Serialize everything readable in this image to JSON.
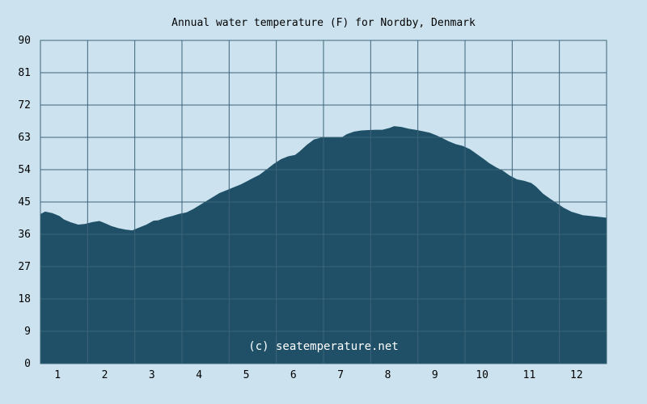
{
  "colors": {
    "background": "#cce3ef",
    "plot_background": "#cce3ef",
    "area_fill": "#1f5068",
    "grid_line": "#3d6378",
    "grid_line_inner": "#4a7a92",
    "text": "#000000",
    "watermark": "#ffffff"
  },
  "chart_data": {
    "type": "area",
    "title": "Annual water temperature (F) for Nordby, Denmark",
    "xlabel": "",
    "ylabel": "",
    "watermark": "(c) seatemperature.net",
    "ylim": [
      0,
      90
    ],
    "xlim": [
      0.5,
      12.5
    ],
    "y_ticks": [
      "0",
      "9",
      "18",
      "27",
      "36",
      "45",
      "54",
      "63",
      "72",
      "81",
      "90"
    ],
    "y_tick_values": [
      0,
      9,
      18,
      27,
      36,
      45,
      54,
      63,
      72,
      81,
      90
    ],
    "x_ticks": [
      "1",
      "2",
      "3",
      "4",
      "5",
      "6",
      "7",
      "8",
      "9",
      "10",
      "11",
      "12"
    ],
    "x_tick_values": [
      1,
      2,
      3,
      4,
      5,
      6,
      7,
      8,
      9,
      10,
      11,
      12
    ],
    "grid": true,
    "series": [
      {
        "x": [
          0.5,
          0.6,
          0.75,
          0.9,
          1.0,
          1.15,
          1.3,
          1.45,
          1.6,
          1.75,
          1.9,
          2.0,
          2.15,
          2.3,
          2.45,
          2.6,
          2.75,
          2.9,
          3.0,
          3.15,
          3.3,
          3.45,
          3.6,
          3.75,
          3.9,
          4.0,
          4.15,
          4.3,
          4.45,
          4.6,
          4.75,
          4.9,
          5.0,
          5.15,
          5.3,
          5.45,
          5.6,
          5.75,
          5.9,
          6.0,
          6.15,
          6.3,
          6.45,
          6.6,
          6.75,
          6.9,
          7.0,
          7.15,
          7.3,
          7.45,
          7.6,
          7.75,
          7.9,
          8.0,
          8.15,
          8.3,
          8.45,
          8.6,
          8.75,
          8.9,
          9.0,
          9.15,
          9.3,
          9.45,
          9.6,
          9.75,
          9.9,
          10.0,
          10.15,
          10.3,
          10.45,
          10.6,
          10.75,
          10.9,
          11.0,
          11.15,
          11.3,
          11.45,
          11.6,
          11.75,
          11.9,
          12.0,
          12.15,
          12.3,
          12.5
        ],
        "values": [
          41.5,
          42.2,
          41.8,
          41.0,
          40.0,
          39.2,
          38.6,
          38.8,
          39.3,
          39.6,
          38.8,
          38.2,
          37.6,
          37.2,
          37.0,
          37.8,
          38.6,
          39.7,
          39.8,
          40.5,
          41.0,
          41.6,
          42.0,
          43.0,
          44.2,
          45.0,
          46.2,
          47.4,
          48.2,
          49.0,
          49.8,
          50.8,
          51.5,
          52.5,
          54.0,
          55.5,
          56.8,
          57.6,
          58.0,
          59.0,
          60.8,
          62.3,
          62.8,
          62.8,
          62.8,
          63.0,
          63.8,
          64.5,
          64.8,
          64.9,
          65.0,
          65.0,
          65.5,
          66.0,
          65.8,
          65.3,
          65.0,
          64.6,
          64.2,
          63.4,
          62.8,
          61.8,
          61.0,
          60.5,
          59.6,
          58.2,
          56.8,
          55.8,
          54.6,
          53.6,
          52.2,
          51.2,
          50.8,
          50.2,
          49.2,
          47.2,
          45.8,
          44.5,
          43.2,
          42.2,
          41.6,
          41.2,
          41.0,
          40.8,
          40.5
        ]
      }
    ]
  }
}
